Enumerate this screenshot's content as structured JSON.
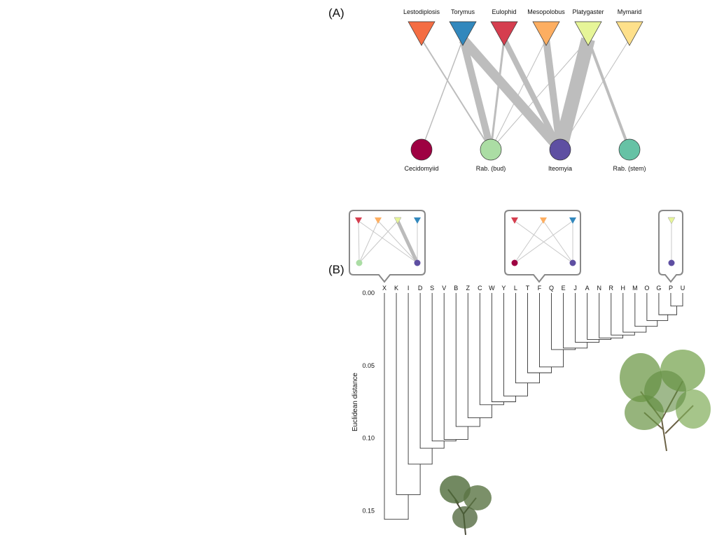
{
  "panel_a_label": "(A)",
  "panel_b_label": "(B)",
  "network": {
    "predators": [
      "Lestodiplosis",
      "Torymus",
      "Eulophid",
      "Mesopolobus",
      "Platygaster",
      "Mymarid"
    ],
    "hosts": [
      "Cecidomyiid",
      "Rab. (bud)",
      "Iteomyia",
      "Rab. (stem)"
    ]
  },
  "chart_data": {
    "type": "dendrogram",
    "y_label": "Euclidean distance",
    "leaves": [
      "X",
      "K",
      "I",
      "D",
      "S",
      "V",
      "B",
      "Z",
      "C",
      "W",
      "Y",
      "L",
      "T",
      "F",
      "Q",
      "E",
      "J",
      "A",
      "N",
      "R",
      "H",
      "M",
      "O",
      "G",
      "P",
      "U"
    ],
    "heights": [
      0.009,
      0.015,
      0.019,
      0.023,
      0.027,
      0.029,
      0.031,
      0.032,
      0.034,
      0.038,
      0.039,
      0.051,
      0.055,
      0.062,
      0.071,
      0.075,
      0.077,
      0.086,
      0.092,
      0.101,
      0.102,
      0.107,
      0.118,
      0.139,
      0.156
    ],
    "ylim": [
      0,
      0.16
    ],
    "yticks": [
      {
        "value": 0,
        "label": "0.00"
      },
      0.05,
      {
        "value": 0.1,
        "label": "0.10"
      },
      0.15
    ]
  }
}
